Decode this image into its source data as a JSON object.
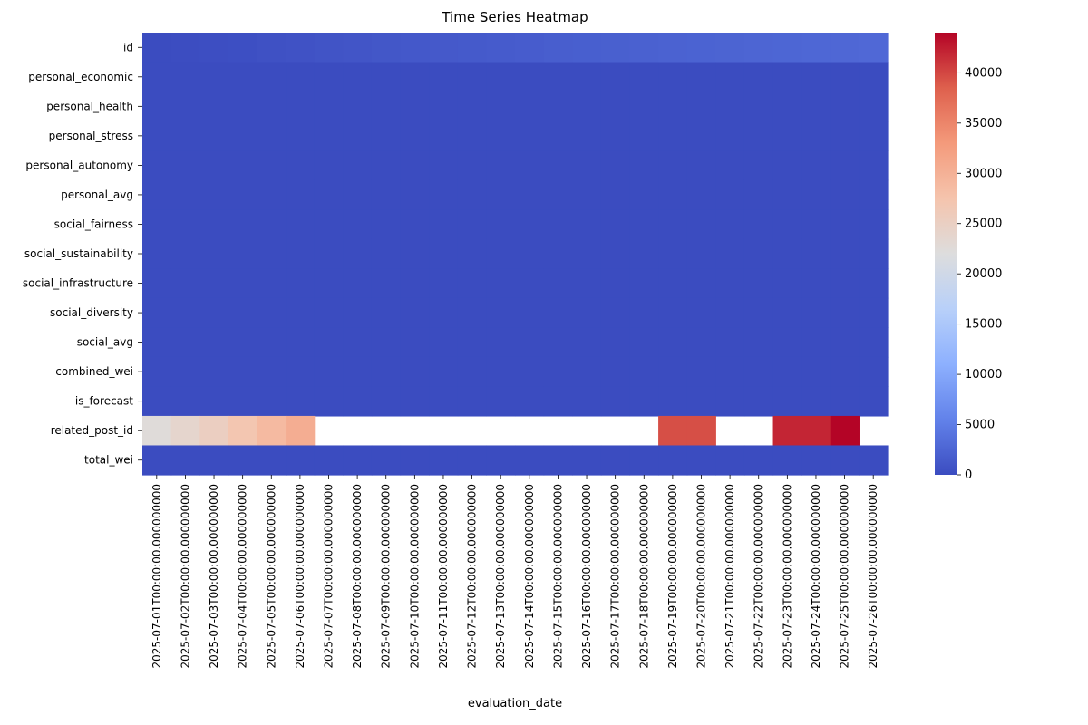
{
  "chart_data": {
    "type": "heatmap",
    "title": "Time Series Heatmap",
    "xlabel": "evaluation_date",
    "ylabel": "",
    "colormap": "coolwarm",
    "colorbar": {
      "min": 0,
      "max": 44000,
      "ticks": [
        0,
        5000,
        10000,
        15000,
        20000,
        25000,
        30000,
        35000,
        40000
      ]
    },
    "x": [
      "2025-07-01T00:00:00.000000000",
      "2025-07-02T00:00:00.000000000",
      "2025-07-03T00:00:00.000000000",
      "2025-07-04T00:00:00.000000000",
      "2025-07-05T00:00:00.000000000",
      "2025-07-06T00:00:00.000000000",
      "2025-07-07T00:00:00.000000000",
      "2025-07-08T00:00:00.000000000",
      "2025-07-09T00:00:00.000000000",
      "2025-07-10T00:00:00.000000000",
      "2025-07-11T00:00:00.000000000",
      "2025-07-12T00:00:00.000000000",
      "2025-07-13T00:00:00.000000000",
      "2025-07-14T00:00:00.000000000",
      "2025-07-15T00:00:00.000000000",
      "2025-07-16T00:00:00.000000000",
      "2025-07-17T00:00:00.000000000",
      "2025-07-18T00:00:00.000000000",
      "2025-07-19T00:00:00.000000000",
      "2025-07-20T00:00:00.000000000",
      "2025-07-21T00:00:00.000000000",
      "2025-07-22T00:00:00.000000000",
      "2025-07-23T00:00:00.000000000",
      "2025-07-24T00:00:00.000000000",
      "2025-07-25T00:00:00.000000000",
      "2025-07-26T00:00:00.000000000"
    ],
    "y": [
      "id",
      "personal_economic",
      "personal_health",
      "personal_stress",
      "personal_autonomy",
      "personal_avg",
      "social_fairness",
      "social_sustainability",
      "social_infrastructure",
      "social_diversity",
      "social_avg",
      "combined_wei",
      "is_forecast",
      "related_post_id",
      "total_wei"
    ],
    "z": [
      [
        50,
        150,
        250,
        350,
        500,
        650,
        800,
        950,
        1100,
        1250,
        1350,
        1450,
        1550,
        1650,
        1800,
        1900,
        2000,
        2100,
        2200,
        2300,
        2400,
        2500,
        2600,
        2700,
        2800,
        2900
      ],
      [
        0.6,
        0.6,
        0.6,
        0.6,
        0.6,
        0.6,
        0.6,
        0.6,
        0.6,
        0.6,
        0.6,
        0.6,
        0.6,
        0.6,
        0.6,
        0.6,
        0.6,
        0.6,
        0.6,
        0.6,
        0.6,
        0.6,
        0.6,
        0.6,
        0.6,
        0.6
      ],
      [
        0.6,
        0.6,
        0.6,
        0.6,
        0.6,
        0.6,
        0.6,
        0.6,
        0.6,
        0.6,
        0.6,
        0.6,
        0.6,
        0.6,
        0.6,
        0.6,
        0.6,
        0.6,
        0.6,
        0.6,
        0.6,
        0.6,
        0.6,
        0.6,
        0.6,
        0.6
      ],
      [
        0.5,
        0.5,
        0.5,
        0.5,
        0.5,
        0.5,
        0.5,
        0.5,
        0.5,
        0.5,
        0.5,
        0.5,
        0.5,
        0.5,
        0.5,
        0.5,
        0.5,
        0.5,
        0.5,
        0.5,
        0.5,
        0.5,
        0.5,
        0.5,
        0.5,
        0.5
      ],
      [
        0.6,
        0.6,
        0.6,
        0.6,
        0.6,
        0.6,
        0.6,
        0.6,
        0.6,
        0.6,
        0.6,
        0.6,
        0.6,
        0.6,
        0.6,
        0.6,
        0.6,
        0.6,
        0.6,
        0.6,
        0.6,
        0.6,
        0.6,
        0.6,
        0.6,
        0.6
      ],
      [
        0.6,
        0.6,
        0.6,
        0.6,
        0.6,
        0.6,
        0.6,
        0.6,
        0.6,
        0.6,
        0.6,
        0.6,
        0.6,
        0.6,
        0.6,
        0.6,
        0.6,
        0.6,
        0.6,
        0.6,
        0.6,
        0.6,
        0.6,
        0.6,
        0.6,
        0.6
      ],
      [
        0.6,
        0.6,
        0.6,
        0.6,
        0.6,
        0.6,
        0.6,
        0.6,
        0.6,
        0.6,
        0.6,
        0.6,
        0.6,
        0.6,
        0.6,
        0.6,
        0.6,
        0.6,
        0.6,
        0.6,
        0.6,
        0.6,
        0.6,
        0.6,
        0.6,
        0.6
      ],
      [
        0.6,
        0.6,
        0.6,
        0.6,
        0.6,
        0.6,
        0.6,
        0.6,
        0.6,
        0.6,
        0.6,
        0.6,
        0.6,
        0.6,
        0.6,
        0.6,
        0.6,
        0.6,
        0.6,
        0.6,
        0.6,
        0.6,
        0.6,
        0.6,
        0.6,
        0.6
      ],
      [
        0.6,
        0.6,
        0.6,
        0.6,
        0.6,
        0.6,
        0.6,
        0.6,
        0.6,
        0.6,
        0.6,
        0.6,
        0.6,
        0.6,
        0.6,
        0.6,
        0.6,
        0.6,
        0.6,
        0.6,
        0.6,
        0.6,
        0.6,
        0.6,
        0.6,
        0.6
      ],
      [
        0.6,
        0.6,
        0.6,
        0.6,
        0.6,
        0.6,
        0.6,
        0.6,
        0.6,
        0.6,
        0.6,
        0.6,
        0.6,
        0.6,
        0.6,
        0.6,
        0.6,
        0.6,
        0.6,
        0.6,
        0.6,
        0.6,
        0.6,
        0.6,
        0.6,
        0.6
      ],
      [
        0.6,
        0.6,
        0.6,
        0.6,
        0.6,
        0.6,
        0.6,
        0.6,
        0.6,
        0.6,
        0.6,
        0.6,
        0.6,
        0.6,
        0.6,
        0.6,
        0.6,
        0.6,
        0.6,
        0.6,
        0.6,
        0.6,
        0.6,
        0.6,
        0.6,
        0.6
      ],
      [
        0.6,
        0.6,
        0.6,
        0.6,
        0.6,
        0.6,
        0.6,
        0.6,
        0.6,
        0.6,
        0.6,
        0.6,
        0.6,
        0.6,
        0.6,
        0.6,
        0.6,
        0.6,
        0.6,
        0.6,
        0.6,
        0.6,
        0.6,
        0.6,
        0.6,
        0.6
      ],
      [
        0,
        0,
        0,
        0,
        0,
        0,
        0,
        0,
        0,
        0,
        0,
        0,
        0,
        0,
        0,
        0,
        0,
        0,
        0,
        0,
        0,
        0,
        0,
        0,
        0,
        0
      ],
      [
        22500,
        23800,
        25200,
        27000,
        28800,
        30500,
        null,
        null,
        null,
        null,
        null,
        null,
        null,
        null,
        null,
        null,
        null,
        null,
        39500,
        39500,
        null,
        null,
        42000,
        42000,
        44000,
        null
      ],
      [
        1.2,
        1.2,
        1.2,
        1.2,
        1.2,
        1.2,
        1.2,
        1.2,
        1.2,
        1.2,
        1.2,
        1.2,
        1.2,
        1.2,
        1.2,
        1.2,
        1.2,
        1.2,
        1.2,
        1.2,
        1.2,
        1.2,
        1.2,
        1.2,
        1.2,
        1.2
      ]
    ],
    "grid": false,
    "colorbar_placement": "right"
  }
}
